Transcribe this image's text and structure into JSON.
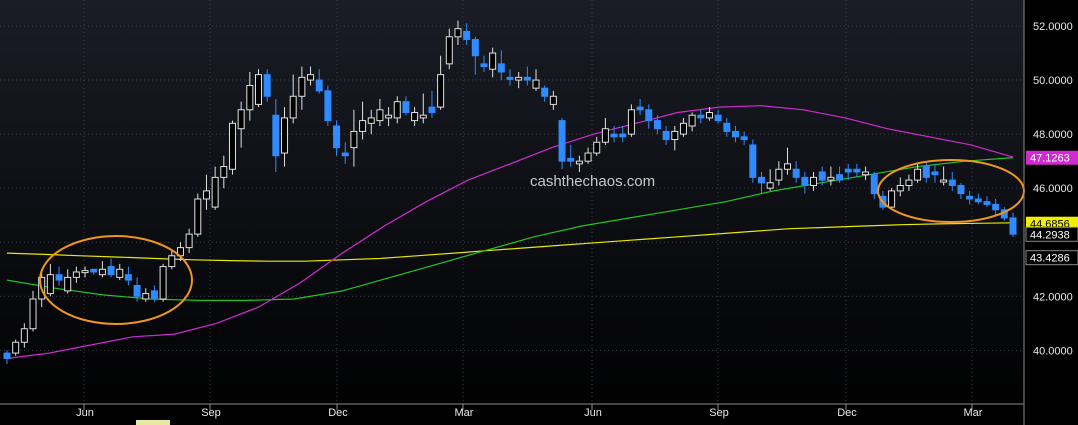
{
  "chart_data": {
    "type": "candlestick",
    "title": "",
    "xlabel": "",
    "ylabel": "",
    "ylim": [
      38.8,
      52.6
    ],
    "y_ticks": [
      "52.0000",
      "50.0000",
      "48.0000",
      "46.0000",
      "42.0000",
      "40.0000"
    ],
    "x_ticks": [
      "Jun",
      "Sep",
      "Dec",
      "Mar",
      "Jun",
      "Sep",
      "Dec",
      "Mar"
    ],
    "grid": true,
    "candles": [
      {
        "o": 39.7,
        "h": 40.0,
        "l": 39.5,
        "c": 39.9,
        "up": false
      },
      {
        "o": 39.9,
        "h": 40.4,
        "l": 39.8,
        "c": 40.3,
        "up": true
      },
      {
        "o": 40.3,
        "h": 41.0,
        "l": 40.1,
        "c": 40.8,
        "up": true
      },
      {
        "o": 40.8,
        "h": 42.2,
        "l": 40.7,
        "c": 41.9,
        "up": true
      },
      {
        "o": 41.9,
        "h": 43.0,
        "l": 41.6,
        "c": 42.7,
        "up": true
      },
      {
        "o": 42.1,
        "h": 43.2,
        "l": 42.0,
        "c": 42.8,
        "up": true
      },
      {
        "o": 42.8,
        "h": 43.1,
        "l": 42.4,
        "c": 42.6,
        "up": false
      },
      {
        "o": 42.2,
        "h": 43.0,
        "l": 42.1,
        "c": 42.7,
        "up": true
      },
      {
        "o": 42.7,
        "h": 43.1,
        "l": 42.5,
        "c": 42.9,
        "up": true
      },
      {
        "o": 42.9,
        "h": 43.1,
        "l": 42.7,
        "c": 42.95,
        "up": true
      },
      {
        "o": 42.9,
        "h": 43.0,
        "l": 42.8,
        "c": 43.0,
        "up": false
      },
      {
        "o": 42.8,
        "h": 43.3,
        "l": 42.7,
        "c": 43.0,
        "up": true
      },
      {
        "o": 43.1,
        "h": 43.4,
        "l": 42.7,
        "c": 42.8,
        "up": false
      },
      {
        "o": 42.7,
        "h": 43.2,
        "l": 42.6,
        "c": 43.0,
        "up": true
      },
      {
        "o": 42.8,
        "h": 43.1,
        "l": 42.4,
        "c": 42.6,
        "up": false
      },
      {
        "o": 42.4,
        "h": 42.7,
        "l": 41.8,
        "c": 42.0,
        "up": false
      },
      {
        "o": 41.9,
        "h": 42.3,
        "l": 41.8,
        "c": 42.1,
        "up": true
      },
      {
        "o": 42.2,
        "h": 42.4,
        "l": 41.8,
        "c": 41.9,
        "up": false
      },
      {
        "o": 41.9,
        "h": 43.2,
        "l": 41.8,
        "c": 43.1,
        "up": true
      },
      {
        "o": 43.1,
        "h": 43.7,
        "l": 43.0,
        "c": 43.5,
        "up": true
      },
      {
        "o": 43.5,
        "h": 44.0,
        "l": 43.3,
        "c": 43.8,
        "up": true
      },
      {
        "o": 43.8,
        "h": 44.5,
        "l": 43.6,
        "c": 44.3,
        "up": true
      },
      {
        "o": 44.3,
        "h": 45.8,
        "l": 44.2,
        "c": 45.6,
        "up": true
      },
      {
        "o": 45.6,
        "h": 46.5,
        "l": 45.2,
        "c": 45.9,
        "up": true
      },
      {
        "o": 45.3,
        "h": 46.8,
        "l": 45.2,
        "c": 46.4,
        "up": true
      },
      {
        "o": 46.4,
        "h": 47.2,
        "l": 46.0,
        "c": 46.8,
        "up": true
      },
      {
        "o": 46.7,
        "h": 48.5,
        "l": 46.5,
        "c": 48.4,
        "up": true
      },
      {
        "o": 48.2,
        "h": 49.2,
        "l": 47.5,
        "c": 48.9,
        "up": true
      },
      {
        "o": 48.9,
        "h": 50.3,
        "l": 48.5,
        "c": 49.8,
        "up": true
      },
      {
        "o": 49.1,
        "h": 50.4,
        "l": 49.0,
        "c": 50.2,
        "up": true
      },
      {
        "o": 50.2,
        "h": 50.4,
        "l": 49.2,
        "c": 49.4,
        "up": false
      },
      {
        "o": 48.7,
        "h": 49.3,
        "l": 46.6,
        "c": 47.2,
        "up": false
      },
      {
        "o": 47.3,
        "h": 49.0,
        "l": 46.8,
        "c": 48.6,
        "up": true
      },
      {
        "o": 48.6,
        "h": 50.2,
        "l": 48.4,
        "c": 49.4,
        "up": true
      },
      {
        "o": 49.4,
        "h": 50.5,
        "l": 48.9,
        "c": 50.1,
        "up": true
      },
      {
        "o": 50.0,
        "h": 50.5,
        "l": 49.8,
        "c": 50.2,
        "up": true
      },
      {
        "o": 50.0,
        "h": 50.4,
        "l": 49.5,
        "c": 49.6,
        "up": false
      },
      {
        "o": 49.6,
        "h": 49.8,
        "l": 48.3,
        "c": 48.5,
        "up": false
      },
      {
        "o": 48.3,
        "h": 48.5,
        "l": 47.2,
        "c": 47.5,
        "up": false
      },
      {
        "o": 47.2,
        "h": 47.7,
        "l": 46.9,
        "c": 47.3,
        "up": false
      },
      {
        "o": 47.5,
        "h": 48.9,
        "l": 46.8,
        "c": 48.1,
        "up": true
      },
      {
        "o": 48.1,
        "h": 49.2,
        "l": 47.8,
        "c": 48.5,
        "up": true
      },
      {
        "o": 48.4,
        "h": 48.9,
        "l": 48.0,
        "c": 48.6,
        "up": true
      },
      {
        "o": 48.5,
        "h": 49.3,
        "l": 48.3,
        "c": 48.9,
        "up": true
      },
      {
        "o": 48.6,
        "h": 49.0,
        "l": 48.3,
        "c": 48.7,
        "up": true
      },
      {
        "o": 48.6,
        "h": 49.4,
        "l": 48.4,
        "c": 49.2,
        "up": true
      },
      {
        "o": 49.2,
        "h": 49.4,
        "l": 48.7,
        "c": 48.8,
        "up": false
      },
      {
        "o": 48.5,
        "h": 49.0,
        "l": 48.3,
        "c": 48.8,
        "up": true
      },
      {
        "o": 48.6,
        "h": 49.5,
        "l": 48.4,
        "c": 48.7,
        "up": true
      },
      {
        "o": 48.8,
        "h": 49.6,
        "l": 48.6,
        "c": 49.0,
        "up": false
      },
      {
        "o": 49.0,
        "h": 50.9,
        "l": 48.9,
        "c": 50.2,
        "up": true
      },
      {
        "o": 50.6,
        "h": 51.9,
        "l": 50.4,
        "c": 51.6,
        "up": true
      },
      {
        "o": 51.6,
        "h": 52.2,
        "l": 51.3,
        "c": 51.9,
        "up": true
      },
      {
        "o": 51.8,
        "h": 52.1,
        "l": 51.3,
        "c": 51.5,
        "up": false
      },
      {
        "o": 51.5,
        "h": 51.6,
        "l": 50.2,
        "c": 50.9,
        "up": false
      },
      {
        "o": 50.6,
        "h": 50.9,
        "l": 50.3,
        "c": 50.5,
        "up": false
      },
      {
        "o": 50.4,
        "h": 51.2,
        "l": 50.1,
        "c": 51.0,
        "up": true
      },
      {
        "o": 50.6,
        "h": 51.1,
        "l": 50.0,
        "c": 50.3,
        "up": false
      },
      {
        "o": 50.1,
        "h": 50.4,
        "l": 49.8,
        "c": 50.1,
        "up": false
      },
      {
        "o": 50.0,
        "h": 50.3,
        "l": 49.7,
        "c": 50.1,
        "up": true
      },
      {
        "o": 50.1,
        "h": 50.5,
        "l": 49.8,
        "c": 50.0,
        "up": false
      },
      {
        "o": 49.7,
        "h": 50.4,
        "l": 49.6,
        "c": 50.0,
        "up": true
      },
      {
        "o": 49.7,
        "h": 49.8,
        "l": 49.2,
        "c": 49.4,
        "up": false
      },
      {
        "o": 49.4,
        "h": 49.6,
        "l": 48.9,
        "c": 49.1,
        "up": true
      },
      {
        "o": 48.5,
        "h": 48.6,
        "l": 46.7,
        "c": 47.0,
        "up": false
      },
      {
        "o": 47.0,
        "h": 47.6,
        "l": 46.8,
        "c": 47.1,
        "up": false
      },
      {
        "o": 46.9,
        "h": 47.2,
        "l": 46.6,
        "c": 47.0,
        "up": true
      },
      {
        "o": 47.0,
        "h": 47.5,
        "l": 46.9,
        "c": 47.3,
        "up": true
      },
      {
        "o": 47.3,
        "h": 47.9,
        "l": 47.2,
        "c": 47.7,
        "up": true
      },
      {
        "o": 47.7,
        "h": 48.6,
        "l": 47.6,
        "c": 48.2,
        "up": true
      },
      {
        "o": 48.0,
        "h": 48.3,
        "l": 47.7,
        "c": 47.9,
        "up": false
      },
      {
        "o": 47.9,
        "h": 48.3,
        "l": 47.7,
        "c": 48.0,
        "up": false
      },
      {
        "o": 48.0,
        "h": 49.1,
        "l": 47.9,
        "c": 48.9,
        "up": true
      },
      {
        "o": 48.9,
        "h": 49.3,
        "l": 48.7,
        "c": 49.0,
        "up": false
      },
      {
        "o": 48.9,
        "h": 49.1,
        "l": 48.2,
        "c": 48.5,
        "up": false
      },
      {
        "o": 48.5,
        "h": 48.7,
        "l": 48.0,
        "c": 48.2,
        "up": false
      },
      {
        "o": 48.1,
        "h": 48.3,
        "l": 47.6,
        "c": 47.8,
        "up": false
      },
      {
        "o": 47.8,
        "h": 48.3,
        "l": 47.4,
        "c": 48.1,
        "up": true
      },
      {
        "o": 48.0,
        "h": 48.6,
        "l": 47.9,
        "c": 48.4,
        "up": true
      },
      {
        "o": 48.3,
        "h": 48.8,
        "l": 48.1,
        "c": 48.7,
        "up": true
      },
      {
        "o": 48.7,
        "h": 48.9,
        "l": 48.4,
        "c": 48.6,
        "up": false
      },
      {
        "o": 48.6,
        "h": 49.0,
        "l": 48.5,
        "c": 48.8,
        "up": true
      },
      {
        "o": 48.7,
        "h": 48.9,
        "l": 48.4,
        "c": 48.5,
        "up": false
      },
      {
        "o": 48.4,
        "h": 48.6,
        "l": 47.9,
        "c": 48.1,
        "up": false
      },
      {
        "o": 48.1,
        "h": 48.3,
        "l": 47.7,
        "c": 47.9,
        "up": false
      },
      {
        "o": 47.9,
        "h": 48.1,
        "l": 47.6,
        "c": 47.8,
        "up": false
      },
      {
        "o": 47.6,
        "h": 47.8,
        "l": 46.2,
        "c": 46.4,
        "up": false
      },
      {
        "o": 46.4,
        "h": 46.6,
        "l": 45.8,
        "c": 46.2,
        "up": false
      },
      {
        "o": 46.2,
        "h": 46.7,
        "l": 45.9,
        "c": 46.0,
        "up": true
      },
      {
        "o": 46.3,
        "h": 47.0,
        "l": 46.1,
        "c": 46.7,
        "up": true
      },
      {
        "o": 46.7,
        "h": 47.5,
        "l": 46.5,
        "c": 46.9,
        "up": true
      },
      {
        "o": 46.7,
        "h": 47.0,
        "l": 46.2,
        "c": 46.4,
        "up": false
      },
      {
        "o": 46.4,
        "h": 46.6,
        "l": 45.8,
        "c": 46.1,
        "up": false
      },
      {
        "o": 46.1,
        "h": 46.6,
        "l": 45.9,
        "c": 46.4,
        "up": true
      },
      {
        "o": 46.3,
        "h": 46.8,
        "l": 46.1,
        "c": 46.6,
        "up": false
      },
      {
        "o": 46.4,
        "h": 46.8,
        "l": 46.1,
        "c": 46.3,
        "up": true
      },
      {
        "o": 46.3,
        "h": 46.8,
        "l": 46.2,
        "c": 46.5,
        "up": false
      },
      {
        "o": 46.6,
        "h": 46.9,
        "l": 46.3,
        "c": 46.7,
        "up": false
      },
      {
        "o": 46.7,
        "h": 46.9,
        "l": 46.4,
        "c": 46.6,
        "up": false
      },
      {
        "o": 46.6,
        "h": 46.8,
        "l": 46.3,
        "c": 46.5,
        "up": true
      },
      {
        "o": 46.5,
        "h": 46.6,
        "l": 45.6,
        "c": 45.8,
        "up": false
      },
      {
        "o": 45.7,
        "h": 45.9,
        "l": 45.2,
        "c": 45.3,
        "up": false
      },
      {
        "o": 45.3,
        "h": 46.0,
        "l": 45.2,
        "c": 45.9,
        "up": true
      },
      {
        "o": 45.9,
        "h": 46.4,
        "l": 45.7,
        "c": 46.1,
        "up": true
      },
      {
        "o": 46.1,
        "h": 46.5,
        "l": 45.9,
        "c": 46.3,
        "up": true
      },
      {
        "o": 46.3,
        "h": 46.9,
        "l": 46.2,
        "c": 46.7,
        "up": true
      },
      {
        "o": 46.8,
        "h": 47.0,
        "l": 46.2,
        "c": 46.4,
        "up": false
      },
      {
        "o": 46.6,
        "h": 46.9,
        "l": 46.2,
        "c": 46.5,
        "up": false
      },
      {
        "o": 46.3,
        "h": 46.8,
        "l": 46.1,
        "c": 46.3,
        "up": true
      },
      {
        "o": 46.3,
        "h": 46.6,
        "l": 45.9,
        "c": 46.1,
        "up": false
      },
      {
        "o": 46.1,
        "h": 46.2,
        "l": 45.6,
        "c": 45.8,
        "up": false
      },
      {
        "o": 45.7,
        "h": 45.9,
        "l": 45.4,
        "c": 45.6,
        "up": false
      },
      {
        "o": 45.6,
        "h": 45.8,
        "l": 45.4,
        "c": 45.5,
        "up": false
      },
      {
        "o": 45.5,
        "h": 45.7,
        "l": 45.3,
        "c": 45.4,
        "up": false
      },
      {
        "o": 45.4,
        "h": 45.6,
        "l": 45.0,
        "c": 45.2,
        "up": false
      },
      {
        "o": 45.2,
        "h": 45.3,
        "l": 44.8,
        "c": 44.9,
        "up": false
      },
      {
        "o": 44.9,
        "h": 45.1,
        "l": 44.2,
        "c": 44.3,
        "up": false
      }
    ],
    "series": [
      {
        "name": "",
        "color": "#e8e800",
        "values": [
          43.6,
          43.55,
          43.5,
          43.45,
          43.4,
          43.35,
          43.32,
          43.3,
          43.3,
          43.35,
          43.4,
          43.5,
          43.6,
          43.7,
          43.8,
          43.9,
          44.0,
          44.1,
          44.2,
          44.3,
          44.4,
          44.5,
          44.55,
          44.6,
          44.65,
          44.68,
          44.7,
          44.72
        ]
      },
      {
        "name": "",
        "color": "#22c422",
        "values": [
          42.6,
          42.3,
          42.05,
          41.9,
          41.85,
          41.85,
          41.9,
          42.2,
          42.7,
          43.2,
          43.7,
          44.2,
          44.6,
          44.9,
          45.2,
          45.5,
          45.9,
          46.2,
          46.5,
          46.8,
          47.0,
          47.13
        ]
      },
      {
        "name": "",
        "color": "#d02bd0",
        "values": [
          39.7,
          39.9,
          40.2,
          40.5,
          40.6,
          41.0,
          41.6,
          42.5,
          43.6,
          44.6,
          45.5,
          46.3,
          46.9,
          47.5,
          48.0,
          48.4,
          48.8,
          49.0,
          49.05,
          48.9,
          48.6,
          48.2,
          47.9,
          47.6,
          47.15
        ]
      }
    ],
    "price_tags": [
      "47.1263",
      "44.6856",
      "44.2938",
      "43.4286"
    ],
    "watermark": "cashthechaos.com",
    "annotations": [
      "orange-ellipse-left",
      "orange-ellipse-right"
    ]
  }
}
